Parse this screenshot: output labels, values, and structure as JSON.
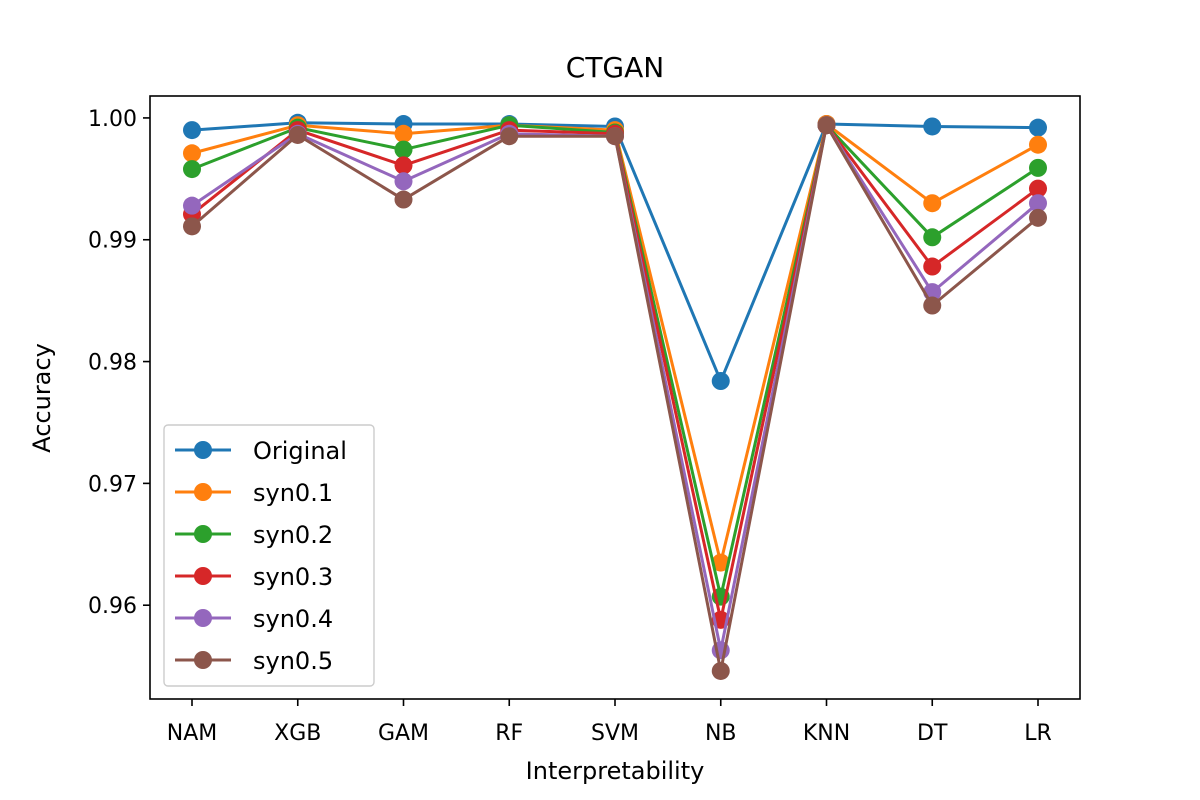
{
  "chart_data": {
    "type": "line",
    "title": "CTGAN",
    "xlabel": "Interpretability",
    "ylabel": "Accuracy",
    "categories": [
      "NAM",
      "XGB",
      "GAM",
      "RF",
      "SVM",
      "NB",
      "KNN",
      "DT",
      "LR"
    ],
    "ylim": [
      0.9523,
      1.0018
    ],
    "yticks": [
      0.96,
      0.97,
      0.98,
      0.99,
      1.0
    ],
    "ytick_labels": [
      "0.96",
      "0.97",
      "0.98",
      "0.99",
      "1.00"
    ],
    "grid": false,
    "legend_position": "lower-left",
    "series": [
      {
        "name": "Original",
        "color": "#1f77b4",
        "values": [
          0.999,
          0.9996,
          0.9995,
          0.9995,
          0.9993,
          0.9784,
          0.9995,
          0.9993,
          0.9992
        ]
      },
      {
        "name": "syn0.1",
        "color": "#ff7f0e",
        "values": [
          0.9971,
          0.9994,
          0.9987,
          0.9994,
          0.999,
          0.9635,
          0.9995,
          0.993,
          0.9978
        ]
      },
      {
        "name": "syn0.2",
        "color": "#2ca02c",
        "values": [
          0.9958,
          0.9992,
          0.9974,
          0.9994,
          0.9988,
          0.9607,
          0.9994,
          0.9902,
          0.9959
        ]
      },
      {
        "name": "syn0.3",
        "color": "#d62728",
        "values": [
          0.9921,
          0.999,
          0.9961,
          0.999,
          0.9987,
          0.9588,
          0.9994,
          0.9878,
          0.9942
        ]
      },
      {
        "name": "syn0.4",
        "color": "#9467bd",
        "values": [
          0.9928,
          0.9987,
          0.9948,
          0.9987,
          0.9985,
          0.9563,
          0.9994,
          0.9857,
          0.993
        ]
      },
      {
        "name": "syn0.5",
        "color": "#8c564b",
        "values": [
          0.9911,
          0.9986,
          0.9933,
          0.9985,
          0.9985,
          0.9546,
          0.9994,
          0.9846,
          0.9918
        ]
      }
    ]
  }
}
